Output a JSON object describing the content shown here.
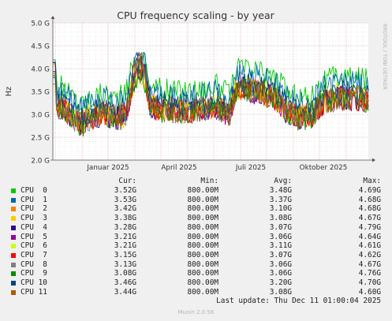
{
  "chart_data": {
    "type": "line",
    "title": "CPU frequency scaling - by year",
    "ylabel": "Hz",
    "side_label": "RRDTOOL / TOBI OETIKER",
    "ylim": [
      2.0,
      5.0
    ],
    "yticks": [
      "2.0 G",
      "2.5 G",
      "3.0 G",
      "3.5 G",
      "4.0 G",
      "4.5 G",
      "5.0 G"
    ],
    "xticks": [
      "Januar 2025",
      "April 2025",
      "Juli 2025",
      "Oktober 2025"
    ],
    "legend_columns": [
      "Cur:",
      "Min:",
      "Avg:",
      "Max:"
    ],
    "series": [
      {
        "name": "CPU  0",
        "color": "#00cc00",
        "cur": "3.52G",
        "min": "800.00M",
        "avg": "3.48G",
        "max": "4.69G"
      },
      {
        "name": "CPU  1",
        "color": "#0066b3",
        "cur": "3.53G",
        "min": "800.00M",
        "avg": "3.37G",
        "max": "4.68G"
      },
      {
        "name": "CPU  2",
        "color": "#ff8000",
        "cur": "3.42G",
        "min": "800.00M",
        "avg": "3.10G",
        "max": "4.68G"
      },
      {
        "name": "CPU  3",
        "color": "#ffcc00",
        "cur": "3.38G",
        "min": "800.00M",
        "avg": "3.08G",
        "max": "4.67G"
      },
      {
        "name": "CPU  4",
        "color": "#330099",
        "cur": "3.28G",
        "min": "800.00M",
        "avg": "3.07G",
        "max": "4.79G"
      },
      {
        "name": "CPU  5",
        "color": "#990099",
        "cur": "3.21G",
        "min": "800.00M",
        "avg": "3.06G",
        "max": "4.64G"
      },
      {
        "name": "CPU  6",
        "color": "#ccff00",
        "cur": "3.21G",
        "min": "800.00M",
        "avg": "3.11G",
        "max": "4.61G"
      },
      {
        "name": "CPU  7",
        "color": "#ff0000",
        "cur": "3.15G",
        "min": "800.00M",
        "avg": "3.07G",
        "max": "4.62G"
      },
      {
        "name": "CPU  8",
        "color": "#808080",
        "cur": "3.13G",
        "min": "800.00M",
        "avg": "3.06G",
        "max": "4.67G"
      },
      {
        "name": "CPU  9",
        "color": "#008f00",
        "cur": "3.08G",
        "min": "800.00M",
        "avg": "3.06G",
        "max": "4.76G"
      },
      {
        "name": "CPU 10",
        "color": "#00487d",
        "cur": "3.46G",
        "min": "800.00M",
        "avg": "3.20G",
        "max": "4.70G"
      },
      {
        "name": "CPU 11",
        "color": "#b35a00",
        "cur": "3.44G",
        "min": "800.00M",
        "avg": "3.08G",
        "max": "4.60G"
      }
    ]
  },
  "footer": {
    "last_update": "Last update: Thu Dec 11 01:00:04 2025",
    "version": "Munin 2.0.56"
  },
  "colors": {
    "background": "#f0f0f0",
    "plot_background": "#ffffff",
    "grid_major": "#e8a0a0",
    "grid_minor": "#dcdcdc"
  }
}
